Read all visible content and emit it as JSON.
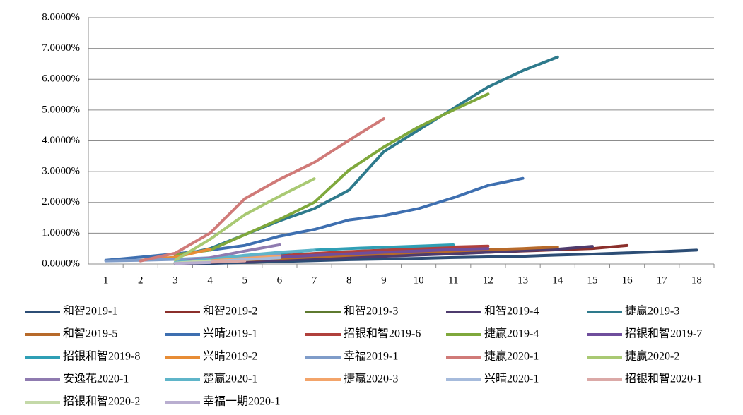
{
  "chart_data": {
    "type": "line",
    "categories": [
      "1",
      "2",
      "3",
      "4",
      "5",
      "6",
      "7",
      "8",
      "9",
      "10",
      "11",
      "12",
      "13",
      "14",
      "15",
      "16",
      "17",
      "18"
    ],
    "ylim": [
      0,
      8
    ],
    "yticks": [
      {
        "value": 0,
        "label": "0.0000%"
      },
      {
        "value": 1,
        "label": "1.0000%"
      },
      {
        "value": 2,
        "label": "2.0000%"
      },
      {
        "value": 3,
        "label": "3.0000%"
      },
      {
        "value": 4,
        "label": "4.0000%"
      },
      {
        "value": 5,
        "label": "5.0000%"
      },
      {
        "value": 6,
        "label": "6.0000%"
      },
      {
        "value": 7,
        "label": "7.0000%"
      },
      {
        "value": 8,
        "label": "8.0000%"
      }
    ],
    "grid": true,
    "series": [
      {
        "name": "和智2019-1",
        "color": "#2c4d75",
        "values": [
          null,
          null,
          0,
          0.02,
          0.05,
          0.08,
          0.11,
          0.14,
          0.16,
          0.18,
          0.21,
          0.23,
          0.25,
          0.29,
          0.32,
          0.36,
          0.4,
          0.45
        ]
      },
      {
        "name": "和智2019-2",
        "color": "#8b2f2b",
        "values": [
          null,
          null,
          0.02,
          0.06,
          0.1,
          0.14,
          0.18,
          0.22,
          0.26,
          0.3,
          0.34,
          0.38,
          0.42,
          0.46,
          0.5,
          0.6,
          null,
          null
        ]
      },
      {
        "name": "和智2019-3",
        "color": "#5e7a2f",
        "values": [
          null,
          null,
          0.02,
          0.07,
          0.12,
          0.17,
          0.22,
          0.27,
          0.32,
          0.37,
          0.42,
          0.47,
          null,
          null,
          null,
          null,
          null,
          null
        ]
      },
      {
        "name": "和智2019-4",
        "color": "#4e3b6d",
        "values": [
          null,
          null,
          0.01,
          0.05,
          0.09,
          0.13,
          0.17,
          0.21,
          0.25,
          0.29,
          0.33,
          0.38,
          0.43,
          0.48,
          0.57,
          null,
          null,
          null
        ]
      },
      {
        "name": "捷赢2019-3",
        "color": "#2e7a8c",
        "values": [
          null,
          null,
          0.25,
          0.5,
          0.95,
          1.4,
          1.8,
          2.4,
          3.65,
          4.35,
          5.05,
          5.75,
          6.28,
          6.72,
          null,
          null,
          null,
          null
        ]
      },
      {
        "name": "和智2019-5",
        "color": "#b76a2a",
        "values": [
          null,
          null,
          0.03,
          0.08,
          0.13,
          0.18,
          0.23,
          0.28,
          0.33,
          0.38,
          0.42,
          0.46,
          0.5,
          0.55,
          null,
          null,
          null,
          null
        ]
      },
      {
        "name": "兴晴2019-1",
        "color": "#3e6fb0",
        "values": [
          0.12,
          0.22,
          0.33,
          0.45,
          0.6,
          0.9,
          1.12,
          1.43,
          1.57,
          1.8,
          2.15,
          2.55,
          2.78,
          null,
          null,
          null,
          null,
          null
        ]
      },
      {
        "name": "招银和智2019-6",
        "color": "#b0403c",
        "values": [
          null,
          null,
          0.05,
          0.12,
          0.2,
          0.27,
          0.34,
          0.4,
          0.45,
          0.5,
          0.55,
          0.58,
          null,
          null,
          null,
          null,
          null,
          null
        ]
      },
      {
        "name": "捷赢2019-4",
        "color": "#7fa83c",
        "values": [
          null,
          null,
          0.3,
          0.45,
          0.95,
          1.45,
          2.0,
          3.05,
          3.8,
          4.45,
          5.0,
          5.52,
          null,
          null,
          null,
          null,
          null,
          null
        ]
      },
      {
        "name": "招银和智2019-7",
        "color": "#6f4e9c",
        "values": [
          null,
          null,
          0.02,
          0.08,
          0.15,
          0.22,
          0.28,
          0.33,
          0.38,
          0.42,
          0.47,
          0.5,
          null,
          null,
          null,
          null,
          null,
          null
        ]
      },
      {
        "name": "招银和智2019-8",
        "color": "#2f9fb5",
        "values": [
          null,
          null,
          0.05,
          0.15,
          0.25,
          0.35,
          0.45,
          0.5,
          0.54,
          0.58,
          0.62,
          null,
          null,
          null,
          null,
          null,
          null,
          null
        ]
      },
      {
        "name": "兴晴2019-2",
        "color": "#e78c35",
        "values": [
          null,
          0.12,
          0.22,
          0.48,
          null,
          null,
          null,
          null,
          null,
          null,
          null,
          null,
          null,
          null,
          null,
          null,
          null,
          null
        ]
      },
      {
        "name": "幸福2019-1",
        "color": "#7f9cc9",
        "values": [
          0.1,
          0.12,
          0.15,
          0.2,
          0.25,
          0.3,
          null,
          null,
          null,
          null,
          null,
          null,
          null,
          null,
          null,
          null,
          null,
          null
        ]
      },
      {
        "name": "捷赢2020-1",
        "color": "#d07a78",
        "values": [
          null,
          0.1,
          0.35,
          1.0,
          2.12,
          2.75,
          3.3,
          4.02,
          4.72,
          null,
          null,
          null,
          null,
          null,
          null,
          null,
          null,
          null
        ]
      },
      {
        "name": "捷赢2020-2",
        "color": "#a9c973",
        "values": [
          null,
          null,
          0.12,
          0.8,
          1.6,
          2.2,
          2.77,
          null,
          null,
          null,
          null,
          null,
          null,
          null,
          null,
          null,
          null,
          null
        ]
      },
      {
        "name": "安逸花2020-1",
        "color": "#8f7bb0",
        "values": [
          null,
          null,
          0.05,
          0.2,
          0.42,
          0.62,
          null,
          null,
          null,
          null,
          null,
          null,
          null,
          null,
          null,
          null,
          null,
          null
        ]
      },
      {
        "name": "楚赢2020-1",
        "color": "#5fb5c9",
        "values": [
          null,
          null,
          0.05,
          0.15,
          0.28,
          0.38,
          0.45,
          null,
          null,
          null,
          null,
          null,
          null,
          null,
          null,
          null,
          null,
          null
        ]
      },
      {
        "name": "捷赢2020-3",
        "color": "#f3a46a",
        "values": [
          null,
          null,
          0.02,
          0.1,
          0.18,
          0.25,
          null,
          null,
          null,
          null,
          null,
          null,
          null,
          null,
          null,
          null,
          null,
          null
        ]
      },
      {
        "name": "兴晴2020-1",
        "color": "#a6bbdc",
        "values": [
          null,
          null,
          0.02,
          0.08,
          0.14,
          0.2,
          null,
          null,
          null,
          null,
          null,
          null,
          null,
          null,
          null,
          null,
          null,
          null
        ]
      },
      {
        "name": "招银和智2020-1",
        "color": "#dba9a7",
        "values": [
          null,
          null,
          0.02,
          0.06,
          0.1,
          null,
          null,
          null,
          null,
          null,
          null,
          null,
          null,
          null,
          null,
          null,
          null,
          null
        ]
      },
      {
        "name": "招银和智2020-2",
        "color": "#c4d9a8",
        "values": [
          null,
          null,
          0.03,
          0.1,
          null,
          null,
          null,
          null,
          null,
          null,
          null,
          null,
          null,
          null,
          null,
          null,
          null,
          null
        ]
      },
      {
        "name": "幸福一期2020-1",
        "color": "#b9aed0",
        "values": [
          null,
          null,
          0.02,
          0.05,
          null,
          null,
          null,
          null,
          null,
          null,
          null,
          null,
          null,
          null,
          null,
          null,
          null,
          null
        ]
      }
    ]
  }
}
